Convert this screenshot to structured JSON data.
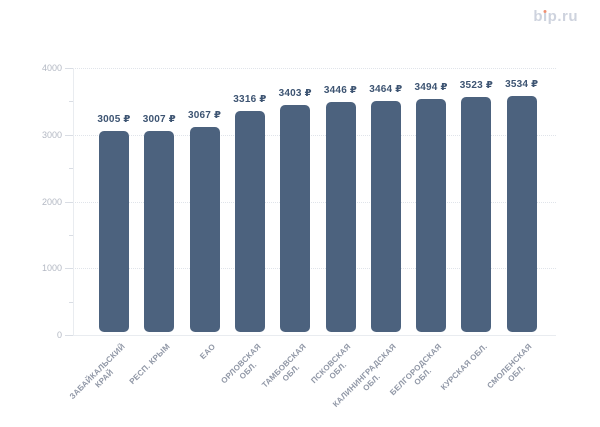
{
  "logo": {
    "text": "bip.ru",
    "left": "b",
    "dotless_i": "ı",
    "right": "p.ru",
    "text_color": "#ced3de",
    "dot_color": "#ee8f72"
  },
  "chart_data": {
    "type": "bar",
    "title": "",
    "xlabel": "",
    "ylabel": "",
    "categories": [
      "ЗАБАЙКАЛЬСКИЙ КРАЙ",
      "РЕСП. КРЫМ",
      "ЕАО",
      "ОРЛОВСКАЯ ОБЛ.",
      "ТАМБОВСКАЯ ОБЛ.",
      "ПСКОВСКАЯ ОБЛ.",
      "КАЛИНИНГРАДСКАЯ ОБЛ.",
      "БЕЛГОРОДСКАЯ ОБЛ.",
      "КУРСКАЯ ОБЛ.",
      "СМОЛЕНСКАЯ ОБЛ."
    ],
    "category_lines": [
      [
        "ЗАБАЙКАЛЬСКИЙ",
        "КРАЙ"
      ],
      [
        "РЕСП. КРЫМ"
      ],
      [
        "ЕАО"
      ],
      [
        "ОРЛОВСКАЯ",
        "ОБЛ."
      ],
      [
        "ТАМБОВСКАЯ",
        "ОБЛ."
      ],
      [
        "ПСКОВСКАЯ",
        "ОБЛ."
      ],
      [
        "КАЛИНИНГРАДСКАЯ",
        "ОБЛ."
      ],
      [
        "БЕЛГОРОДСКАЯ",
        "ОБЛ."
      ],
      [
        "КУРСКАЯ ОБЛ."
      ],
      [
        "СМОЛЕНСКАЯ",
        "ОБЛ."
      ]
    ],
    "values": [
      3005,
      3007,
      3067,
      3316,
      3403,
      3446,
      3464,
      3494,
      3523,
      3534
    ],
    "value_labels": [
      "3005 ₽",
      "3007 ₽",
      "3067 ₽",
      "3316 ₽",
      "3403 ₽",
      "3446 ₽",
      "3464 ₽",
      "3494 ₽",
      "3523 ₽",
      "3534 ₽"
    ],
    "value_suffix": "₽",
    "ylim": [
      0,
      4000
    ],
    "y_ticks": [
      0,
      1000,
      2000,
      3000,
      4000
    ],
    "y_tick_labels": [
      "0",
      "1000",
      "2000",
      "3000",
      "4000"
    ],
    "y_minor_tick_step": 500,
    "grid": "horizontal-dotted",
    "legend": "none",
    "colors": {
      "bar": "#4c627e",
      "value_label": "#3d5472",
      "y_tick_label": "#b3b8c3",
      "x_tick_label": "#9097a6",
      "gridline": "#e0e4ea",
      "axis_line": "#e9ecf0"
    }
  }
}
